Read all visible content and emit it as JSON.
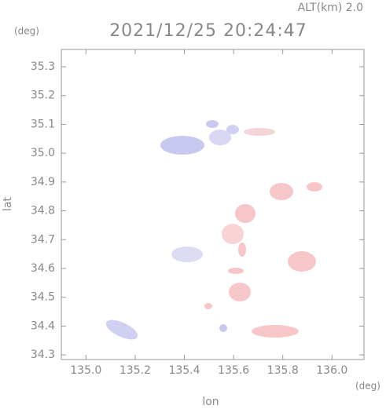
{
  "chart_data": {
    "type": "map",
    "altitude_label": "ALT(km) 2.0",
    "title": "2021/12/25 20:24:47",
    "y_unit": "(deg)",
    "x_unit": "(deg)",
    "ylabel": "lat",
    "xlabel": "lon",
    "xlim": [
      134.9,
      136.13
    ],
    "ylim": [
      34.284,
      35.36
    ],
    "xticks": [
      {
        "value": 135,
        "label": "135.0"
      },
      135.2,
      135.4,
      135.6,
      135.8,
      {
        "value": 136,
        "label": "136.0"
      }
    ],
    "yticks": [
      35.3,
      35.2,
      35.1,
      {
        "value": 35,
        "label": "35.0"
      },
      34.9,
      34.8,
      34.7,
      34.6,
      34.5,
      34.4,
      34.3
    ]
  }
}
